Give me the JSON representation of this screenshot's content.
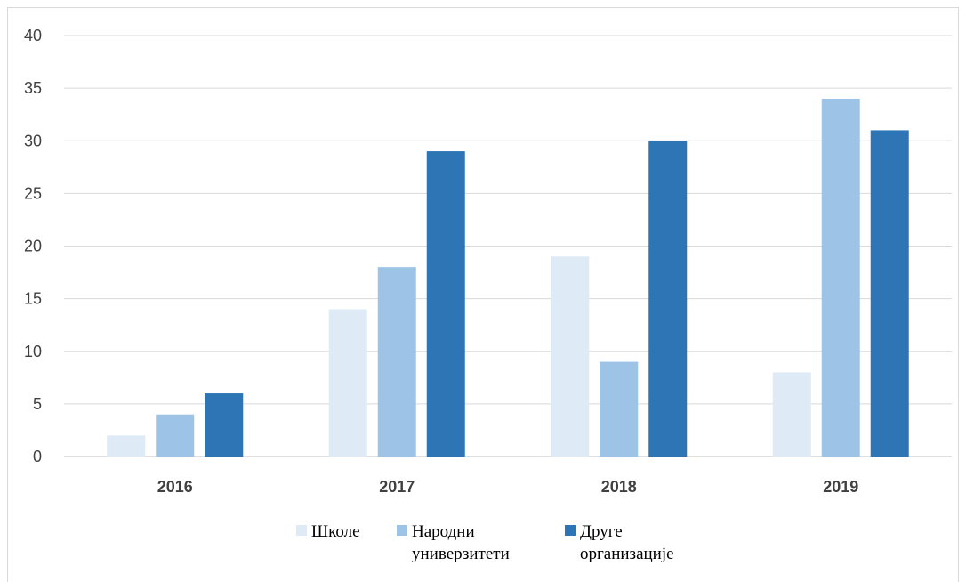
{
  "chart_data": {
    "type": "bar",
    "categories": [
      "2016",
      "2017",
      "2018",
      "2019"
    ],
    "series": [
      {
        "name": "Школе",
        "values": [
          2,
          14,
          19,
          8
        ],
        "color": "#deeaf6"
      },
      {
        "name": "Народни универзитети",
        "values": [
          4,
          18,
          9,
          34
        ],
        "color": "#9dc3e6"
      },
      {
        "name": "Друге организације",
        "values": [
          6,
          29,
          30,
          31
        ],
        "color": "#2e75b6"
      }
    ],
    "legend_lines": [
      [
        "Школе"
      ],
      [
        "Народни",
        "универзитети"
      ],
      [
        "Друге",
        "организације"
      ]
    ],
    "title": "",
    "xlabel": "",
    "ylabel": "",
    "ylim": [
      0,
      40
    ],
    "yticks": [
      0,
      5,
      10,
      15,
      20,
      25,
      30,
      35,
      40
    ],
    "grid": true,
    "legend_position": "bottom"
  }
}
